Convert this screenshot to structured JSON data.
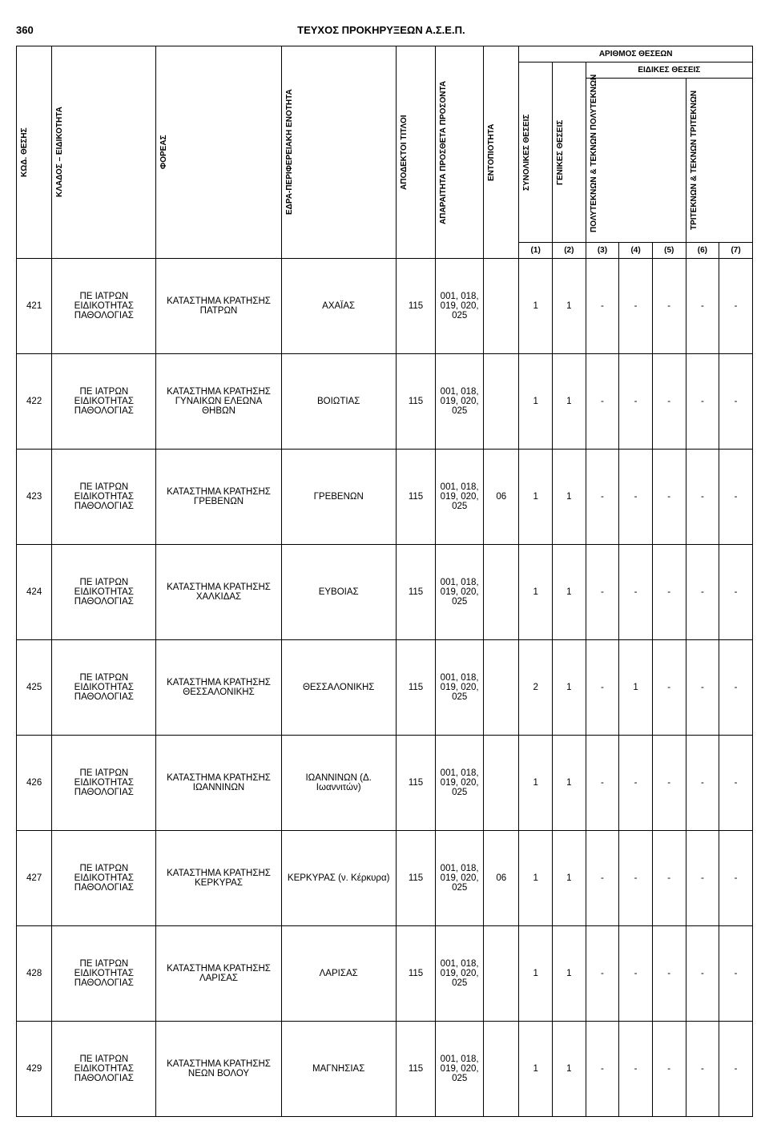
{
  "header": {
    "page_number": "360",
    "title": "ΤΕΥΧΟΣ ΠΡΟΚΗΡΥΞΕΩΝ Α.Σ.Ε.Π."
  },
  "tableHeaders": {
    "kod": "ΚΩΔ. ΘΕΣΗΣ",
    "klados": "ΚΛΑΔΟΣ – ΕΙΔΙΚΟΤΗΤΑ",
    "foreas": "ΦΟΡΕΑΣ",
    "edra": "ΕΔΡΑ-ΠΕΡΙΦΕΡΕΙΑΚΗ ΕΝΟΤΗΤΑ",
    "titloi": "ΑΠΟΔΕΚΤΟΙ ΤΙΤΛΟΙ",
    "prosonta": "ΑΠΑΡΑΙΤΗΤΑ ΠΡΟΣΘΕΤΑ ΠΡΟΣΟΝΤΑ",
    "entop": "ΕΝΤΟΠΙΟΤΗΤΑ",
    "arithmos": "ΑΡΙΘΜΟΣ ΘΕΣΕΩΝ",
    "eidikes": "ΕΙΔΙΚΕΣ ΘΕΣΕΙΣ",
    "synolikes": "ΣΥΝΟΛΙΚΕΣ ΘΕΣΕΙΣ",
    "genikes": "ΓΕΝΙΚΕΣ ΘΕΣΕΙΣ",
    "polyteknon": "ΠΟΛΥΤΕΚΝΩΝ & ΤΕΚΝΩΝ ΠΟΛΥΤΕΚΝΩΝ",
    "triteknon": "ΤΡΙΤΕΚΝΩΝ & ΤΕΚΝΩΝ ΤΡΙΤΕΚΝΩΝ",
    "n1": "(1)",
    "n2": "(2)",
    "n3": "(3)",
    "n4": "(4)",
    "n5": "(5)",
    "n6": "(6)",
    "n7": "(7)"
  },
  "common": {
    "klados": "ΠΕ ΙΑΤΡΩΝ ΕΙΔΙΚΟΤΗΤΑΣ ΠΑΘΟΛΟΓΙΑΣ",
    "titloi": "115",
    "prosonta": "001, 018, 019, 020, 025"
  },
  "rows": [
    {
      "kod": "421",
      "foreas": "ΚΑΤΑΣΤΗΜΑ ΚΡΑΤΗΣΗΣ ΠΑΤΡΩΝ",
      "edra": "ΑΧΑΪΑΣ",
      "entop": "",
      "c1": "1",
      "c2": "1",
      "c3": "-",
      "c4": "-",
      "c5": "-",
      "c6": "-",
      "c7": "-"
    },
    {
      "kod": "422",
      "foreas": "ΚΑΤΑΣΤΗΜΑ ΚΡΑΤΗΣΗΣ ΓΥΝΑΙΚΩΝ ΕΛΕΩΝΑ ΘΗΒΩΝ",
      "edra": "ΒΟΙΩΤΙΑΣ",
      "entop": "",
      "c1": "1",
      "c2": "1",
      "c3": "-",
      "c4": "-",
      "c5": "-",
      "c6": "-",
      "c7": "-"
    },
    {
      "kod": "423",
      "foreas": "ΚΑΤΑΣΤΗΜΑ ΚΡΑΤΗΣΗΣ ΓΡΕΒΕΝΩΝ",
      "edra": "ΓΡΕΒΕΝΩΝ",
      "entop": "06",
      "c1": "1",
      "c2": "1",
      "c3": "-",
      "c4": "-",
      "c5": "-",
      "c6": "-",
      "c7": "-"
    },
    {
      "kod": "424",
      "foreas": "ΚΑΤΑΣΤΗΜΑ ΚΡΑΤΗΣΗΣ ΧΑΛΚΙΔΑΣ",
      "edra": "ΕΥΒΟΙΑΣ",
      "entop": "",
      "c1": "1",
      "c2": "1",
      "c3": "-",
      "c4": "-",
      "c5": "-",
      "c6": "-",
      "c7": "-"
    },
    {
      "kod": "425",
      "foreas": "ΚΑΤΑΣΤΗΜΑ ΚΡΑΤΗΣΗΣ ΘΕΣΣΑΛΟΝΙΚΗΣ",
      "edra": "ΘΕΣΣΑΛΟΝΙΚΗΣ",
      "entop": "",
      "c1": "2",
      "c2": "1",
      "c3": "-",
      "c4": "1",
      "c5": "-",
      "c6": "-",
      "c7": "-"
    },
    {
      "kod": "426",
      "foreas": "ΚΑΤΑΣΤΗΜΑ ΚΡΑΤΗΣΗΣ ΙΩΑΝΝΙΝΩΝ",
      "edra": "ΙΩΑΝΝΙΝΩΝ (Δ. Ιωαννιτών)",
      "entop": "",
      "c1": "1",
      "c2": "1",
      "c3": "-",
      "c4": "-",
      "c5": "-",
      "c6": "-",
      "c7": "-"
    },
    {
      "kod": "427",
      "foreas": "ΚΑΤΑΣΤΗΜΑ ΚΡΑΤΗΣΗΣ ΚΕΡΚΥΡΑΣ",
      "edra": "ΚΕΡΚΥΡΑΣ (ν. Κέρκυρα)",
      "entop": "06",
      "c1": "1",
      "c2": "1",
      "c3": "-",
      "c4": "-",
      "c5": "-",
      "c6": "-",
      "c7": "-"
    },
    {
      "kod": "428",
      "foreas": "ΚΑΤΑΣΤΗΜΑ ΚΡΑΤΗΣΗΣ ΛΑΡΙΣΑΣ",
      "edra": "ΛΑΡΙΣΑΣ",
      "entop": "",
      "c1": "1",
      "c2": "1",
      "c3": "-",
      "c4": "-",
      "c5": "-",
      "c6": "-",
      "c7": "-"
    },
    {
      "kod": "429",
      "foreas": "ΚΑΤΑΣΤΗΜΑ ΚΡΑΤΗΣΗΣ ΝΕΩΝ ΒΟΛΟΥ",
      "edra": "ΜΑΓΝΗΣΙΑΣ",
      "entop": "",
      "c1": "1",
      "c2": "1",
      "c3": "-",
      "c4": "-",
      "c5": "-",
      "c6": "-",
      "c7": "-"
    }
  ]
}
